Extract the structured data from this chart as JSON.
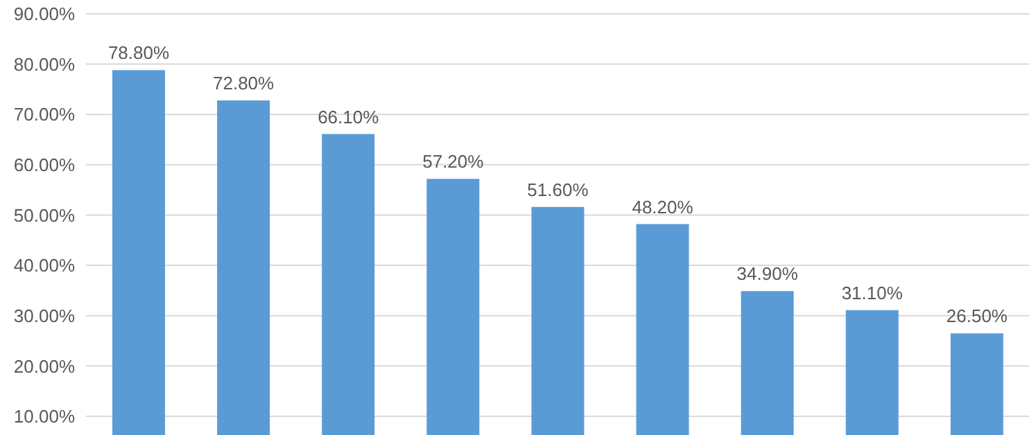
{
  "chart_data": {
    "type": "bar",
    "categories": [
      null,
      null,
      null,
      null,
      null,
      null,
      null,
      null,
      null
    ],
    "values": [
      78.8,
      72.8,
      66.1,
      57.2,
      51.6,
      48.2,
      34.9,
      31.1,
      26.5
    ],
    "value_labels": [
      "78.80%",
      "72.80%",
      "66.10%",
      "57.20%",
      "51.60%",
      "48.20%",
      "34.90%",
      "31.10%",
      "26.50%"
    ],
    "color": "#5b9bd5",
    "ylim": [
      6,
      90
    ],
    "yticks": [
      {
        "value": 10,
        "label": "10.00%"
      },
      {
        "value": 20,
        "label": "20.00%"
      },
      {
        "value": 30,
        "label": "30.00%"
      },
      {
        "value": 40,
        "label": "40.00%"
      },
      {
        "value": 50,
        "label": "50.00%"
      },
      {
        "value": 60,
        "label": "60.00%"
      },
      {
        "value": 70,
        "label": "70.00%"
      },
      {
        "value": 80,
        "label": "80.00%"
      },
      {
        "value": 90,
        "label": "90.00%"
      }
    ],
    "grid": "y",
    "tick_labels": "y"
  }
}
